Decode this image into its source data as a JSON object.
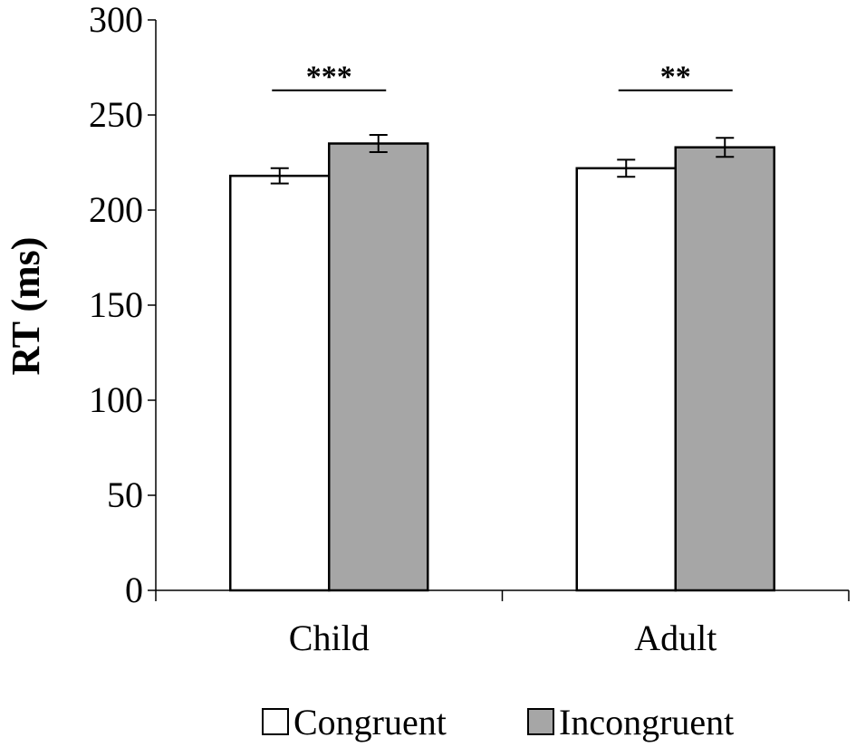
{
  "chart_data": {
    "type": "bar",
    "title": "",
    "xlabel": "",
    "ylabel": "RT (ms)",
    "ylim": [
      0,
      300
    ],
    "yticks": [
      0,
      50,
      100,
      150,
      200,
      250,
      300
    ],
    "grid": false,
    "legend_position": "bottom",
    "categories": [
      "Child",
      "Adult"
    ],
    "series": [
      {
        "name": "Congruent",
        "values": [
          218,
          222
        ],
        "errors": [
          4,
          4.5
        ],
        "color": "#ffffff"
      },
      {
        "name": "Incongruent",
        "values": [
          235,
          233
        ],
        "errors": [
          4.5,
          5
        ],
        "color": "#a6a6a6"
      }
    ],
    "annotations": [
      {
        "category": "Child",
        "label": "***",
        "y": 263
      },
      {
        "category": "Adult",
        "label": "**",
        "y": 263
      }
    ]
  }
}
